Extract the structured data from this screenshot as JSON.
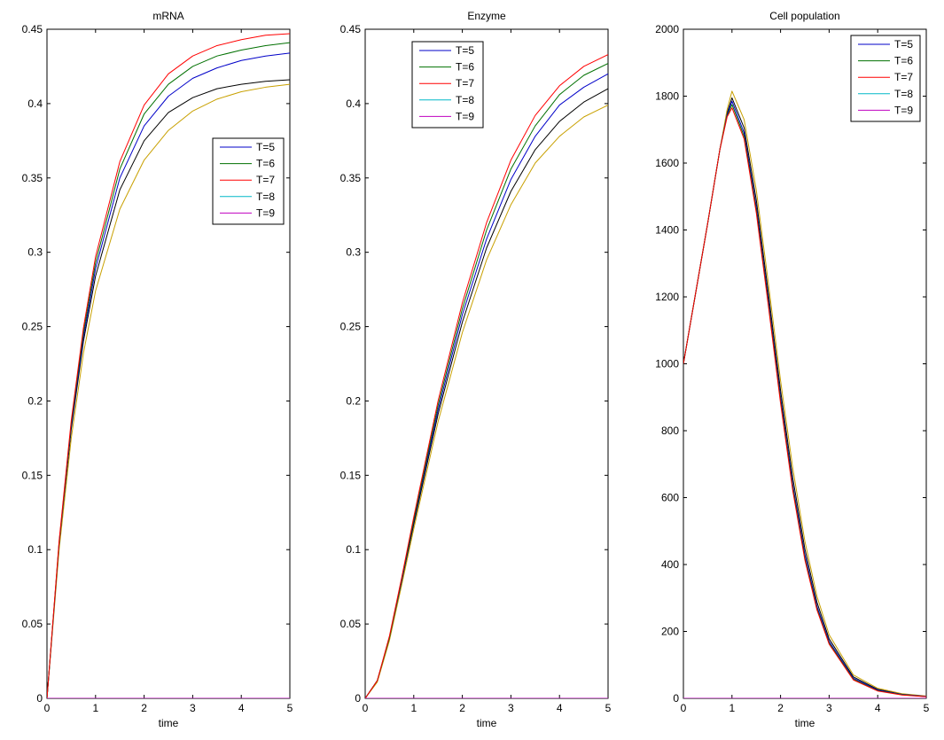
{
  "colors": {
    "T=5": "#0000c8",
    "T=6": "#007000",
    "T=7": "#ff0000",
    "T=8": "#00b8c8",
    "T=9": "#c000c0",
    "base": "#000000",
    "baseline2": "#c8a000"
  },
  "chart_data": [
    {
      "type": "line",
      "title": "mRNA",
      "xlabel": "time",
      "ylabel": "",
      "xlim": [
        0,
        5
      ],
      "ylim": [
        0,
        0.45
      ],
      "xticks": [
        "0",
        "1",
        "2",
        "3",
        "4",
        "5"
      ],
      "yticks": [
        "0",
        "0.05",
        "0.1",
        "0.15",
        "0.2",
        "0.25",
        "0.3",
        "0.35",
        "0.4",
        "0.45"
      ],
      "grid": false,
      "legend_position": "right-middle",
      "legend": [
        "T=5",
        "T=6",
        "T=7",
        "T=8",
        "T=9"
      ],
      "x": [
        0,
        0.25,
        0.5,
        0.75,
        1,
        1.5,
        2,
        2.5,
        3,
        3.5,
        4,
        4.5,
        5
      ],
      "series": [
        {
          "name": "T=5",
          "values": [
            0,
            0.104,
            0.183,
            0.243,
            0.289,
            0.35,
            0.385,
            0.405,
            0.417,
            0.424,
            0.429,
            0.432,
            0.434
          ]
        },
        {
          "name": "T=6",
          "values": [
            0,
            0.105,
            0.185,
            0.246,
            0.293,
            0.356,
            0.393,
            0.413,
            0.425,
            0.432,
            0.436,
            0.439,
            0.441
          ]
        },
        {
          "name": "T=7",
          "values": [
            0,
            0.106,
            0.187,
            0.249,
            0.297,
            0.361,
            0.399,
            0.42,
            0.432,
            0.439,
            0.443,
            0.446,
            0.447
          ]
        },
        {
          "name": "T=8",
          "values": [
            0,
            0,
            0,
            0,
            0,
            0,
            0,
            0,
            0,
            0,
            0,
            0,
            0
          ]
        },
        {
          "name": "T=9",
          "values": [
            0,
            0,
            0,
            0,
            0,
            0,
            0,
            0,
            0,
            0,
            0,
            0,
            0
          ]
        },
        {
          "values": [
            0,
            0.103,
            0.181,
            0.24,
            0.284,
            0.342,
            0.375,
            0.394,
            0.404,
            0.41,
            0.413,
            0.415,
            0.416
          ]
        },
        {
          "values": [
            0,
            0.1,
            0.175,
            0.232,
            0.274,
            0.329,
            0.362,
            0.382,
            0.395,
            0.403,
            0.408,
            0.411,
            0.413
          ]
        }
      ]
    },
    {
      "type": "line",
      "title": "Enzyme",
      "xlabel": "time",
      "ylabel": "",
      "xlim": [
        0,
        5
      ],
      "ylim": [
        0,
        0.45
      ],
      "xticks": [
        "0",
        "1",
        "2",
        "3",
        "4",
        "5"
      ],
      "yticks": [
        "0",
        "0.05",
        "0.1",
        "0.15",
        "0.2",
        "0.25",
        "0.3",
        "0.35",
        "0.4",
        "0.45"
      ],
      "grid": false,
      "legend_position": "top-center",
      "legend": [
        "T=5",
        "T=6",
        "T=7",
        "T=8",
        "T=9"
      ],
      "x": [
        0,
        0.25,
        0.5,
        0.75,
        1,
        1.5,
        2,
        2.5,
        3,
        3.5,
        4,
        4.5,
        5
      ],
      "series": [
        {
          "name": "T=5",
          "values": [
            0,
            0.012,
            0.041,
            0.079,
            0.119,
            0.194,
            0.258,
            0.309,
            0.349,
            0.378,
            0.399,
            0.411,
            0.42
          ]
        },
        {
          "name": "T=6",
          "values": [
            0,
            0.012,
            0.041,
            0.08,
            0.12,
            0.197,
            0.262,
            0.315,
            0.356,
            0.385,
            0.406,
            0.419,
            0.427
          ]
        },
        {
          "name": "T=7",
          "values": [
            0,
            0.012,
            0.042,
            0.081,
            0.122,
            0.2,
            0.266,
            0.32,
            0.362,
            0.392,
            0.412,
            0.425,
            0.433
          ]
        },
        {
          "name": "T=8",
          "values": [
            0,
            0,
            0,
            0,
            0,
            0,
            0,
            0,
            0,
            0,
            0,
            0,
            0
          ]
        },
        {
          "name": "T=9",
          "values": [
            0,
            0,
            0,
            0,
            0,
            0,
            0,
            0,
            0,
            0,
            0,
            0,
            0
          ]
        },
        {
          "values": [
            0,
            0.012,
            0.04,
            0.078,
            0.117,
            0.191,
            0.253,
            0.303,
            0.341,
            0.369,
            0.388,
            0.401,
            0.41
          ]
        },
        {
          "values": [
            0,
            0.011,
            0.039,
            0.076,
            0.114,
            0.186,
            0.246,
            0.295,
            0.332,
            0.36,
            0.378,
            0.391,
            0.399
          ]
        }
      ]
    },
    {
      "type": "line",
      "title": "Cell population",
      "xlabel": "time",
      "ylabel": "",
      "xlim": [
        0,
        5
      ],
      "ylim": [
        0,
        2000
      ],
      "xticks": [
        "0",
        "1",
        "2",
        "3",
        "4",
        "5"
      ],
      "yticks": [
        "0",
        "200",
        "400",
        "600",
        "800",
        "1000",
        "1200",
        "1400",
        "1600",
        "1800",
        "2000"
      ],
      "grid": false,
      "legend_position": "top-right",
      "legend": [
        "T=5",
        "T=6",
        "T=7",
        "T=8",
        "T=9"
      ],
      "x": [
        0,
        0.25,
        0.5,
        0.75,
        0.9,
        1,
        1.25,
        1.5,
        1.75,
        2,
        2.25,
        2.5,
        2.75,
        3,
        3.5,
        4,
        4.5,
        5
      ],
      "series": [
        {
          "name": "T=5",
          "values": [
            1000,
            1210,
            1420,
            1640,
            1745,
            1785,
            1690,
            1470,
            1190,
            900,
            640,
            430,
            275,
            170,
            60,
            25,
            12,
            6
          ]
        },
        {
          "name": "T=6",
          "values": [
            1000,
            1210,
            1420,
            1640,
            1740,
            1775,
            1680,
            1460,
            1180,
            890,
            630,
            420,
            268,
            165,
            57,
            23,
            11,
            5
          ]
        },
        {
          "name": "T=7",
          "values": [
            1000,
            1210,
            1420,
            1640,
            1738,
            1765,
            1672,
            1452,
            1172,
            882,
            622,
            414,
            264,
            162,
            55,
            22,
            10,
            5
          ]
        },
        {
          "name": "T=8",
          "values": [
            0,
            0,
            0,
            0,
            0,
            0,
            0,
            0,
            0,
            0,
            0,
            0,
            0,
            0,
            0,
            0,
            0,
            0
          ]
        },
        {
          "name": "T=9",
          "values": [
            0,
            0,
            0,
            0,
            0,
            0,
            0,
            0,
            0,
            0,
            0,
            0,
            0,
            0,
            0,
            0,
            0,
            0
          ]
        },
        {
          "values": [
            1000,
            1210,
            1420,
            1640,
            1750,
            1795,
            1705,
            1490,
            1210,
            920,
            660,
            447,
            287,
            178,
            64,
            27,
            13,
            6
          ]
        },
        {
          "values": [
            1000,
            1210,
            1420,
            1640,
            1760,
            1815,
            1730,
            1520,
            1240,
            950,
            690,
            470,
            305,
            190,
            70,
            30,
            14,
            7
          ]
        }
      ]
    }
  ]
}
